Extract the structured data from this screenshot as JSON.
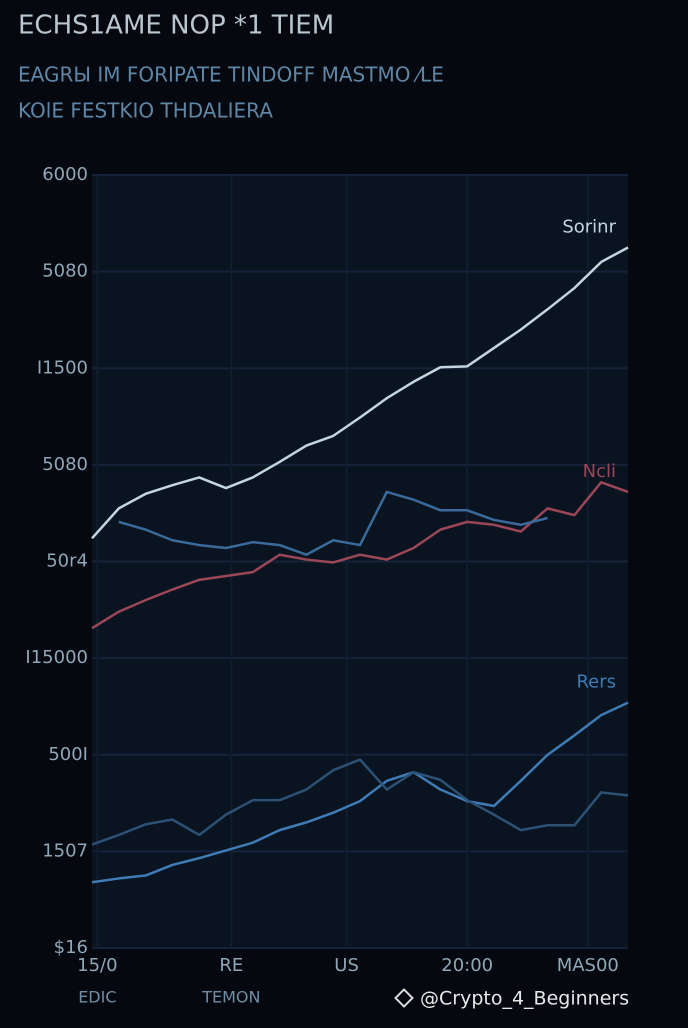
{
  "chart_data": {
    "type": "line",
    "title": "ECHS1AME NOP *1 TIEM",
    "subtitle": [
      "EAGRЫ IM FORIPATE TINDOFF MASTMO ⁄LE",
      "KOlE FESTKIO THDALIERA"
    ],
    "x": [
      0,
      1,
      2,
      3,
      4,
      5,
      6,
      7,
      8,
      9,
      10,
      11,
      12,
      13,
      14,
      15,
      16,
      17,
      18,
      19,
      20
    ],
    "xlim": [
      0,
      20
    ],
    "xticks": [
      {
        "value": 0.2,
        "label": "15/0"
      },
      {
        "value": 5.2,
        "label": "RE"
      },
      {
        "value": 9.5,
        "label": "US"
      },
      {
        "value": 14,
        "label": "20:00"
      },
      {
        "value": 18.5,
        "label": "MAS00"
      }
    ],
    "xlabels_second_row": [
      "EDIC",
      "TEMON"
    ],
    "ylim": [
      0,
      8
    ],
    "yticks": [
      {
        "value": 0,
        "label": "$16"
      },
      {
        "value": 1,
        "label": "1507"
      },
      {
        "value": 2,
        "label": "500I"
      },
      {
        "value": 3,
        "label": "I15000"
      },
      {
        "value": 4,
        "label": "50r4"
      },
      {
        "value": 5,
        "label": "5080"
      },
      {
        "value": 6,
        "label": "I1500"
      },
      {
        "value": 7,
        "label": "5080"
      },
      {
        "value": 8,
        "label": "6000"
      }
    ],
    "grid": true,
    "series": [
      {
        "name": "Sorinr",
        "color": "#c3d6df",
        "values": [
          4.24,
          4.55,
          4.7,
          4.79,
          4.87,
          4.76,
          4.87,
          5.03,
          5.2,
          5.3,
          5.49,
          5.69,
          5.86,
          6.01,
          6.02,
          6.21,
          6.4,
          6.61,
          6.83,
          7.1,
          7.25
        ]
      },
      {
        "name": "Ncli",
        "color": "#9c4758",
        "values": [
          3.31,
          3.48,
          3.6,
          3.71,
          3.81,
          3.85,
          3.89,
          4.07,
          4.02,
          3.99,
          4.07,
          4.02,
          4.14,
          4.33,
          4.41,
          4.38,
          4.31,
          4.55,
          4.48,
          4.82,
          4.72
        ]
      },
      {
        "color": "#3a6a9a",
        "values": [
          null,
          4.41,
          4.33,
          4.22,
          4.17,
          4.14,
          4.2,
          4.17,
          4.07,
          4.22,
          4.17,
          4.72,
          4.64,
          4.53,
          4.53,
          4.43,
          4.38,
          4.45,
          null,
          null,
          null
        ]
      },
      {
        "name": "Rers",
        "color": "#3f7bb5",
        "values": [
          0.68,
          0.72,
          0.75,
          0.86,
          0.93,
          1.01,
          1.09,
          1.22,
          1.3,
          1.4,
          1.52,
          1.73,
          1.82,
          1.64,
          1.52,
          1.47,
          1.73,
          2.0,
          2.2,
          2.41,
          2.54
        ]
      },
      {
        "color": "#2c5175",
        "values": [
          1.07,
          1.17,
          1.28,
          1.33,
          1.17,
          1.38,
          1.53,
          1.53,
          1.64,
          1.84,
          1.95,
          1.64,
          1.82,
          1.74,
          1.53,
          1.38,
          1.22,
          1.27,
          1.27,
          1.61,
          1.58
        ]
      }
    ],
    "watermark": "@Crypto_4_Beginners"
  }
}
